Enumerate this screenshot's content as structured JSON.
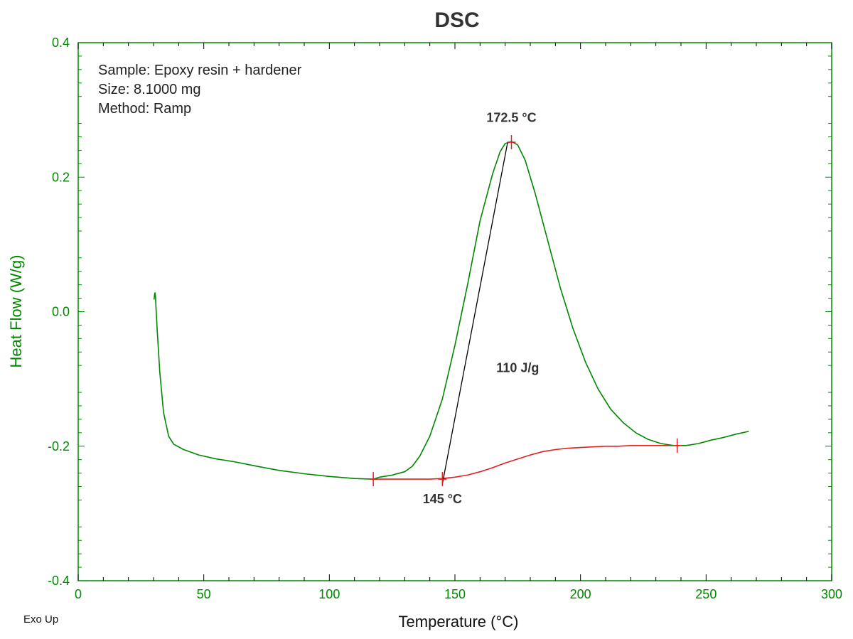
{
  "chart_data": {
    "type": "line",
    "title": "DSC",
    "xlabel": "Temperature (°C)",
    "ylabel": "Heat Flow (W/g)",
    "xlim": [
      0,
      300
    ],
    "ylim": [
      -0.4,
      0.4
    ],
    "x_ticks": [
      0,
      50,
      100,
      150,
      200,
      250,
      300
    ],
    "x_tick_labels": [
      "0",
      "50",
      "100",
      "150",
      "200",
      "250",
      "300"
    ],
    "y_ticks": [
      0.4,
      0.2,
      0.0,
      -0.2,
      -0.4
    ],
    "y_tick_labels": [
      "0.4",
      "0.2",
      "0.0",
      "-0.2",
      "-0.4"
    ],
    "grid": false,
    "corner_label": "Exo Up",
    "info_lines": [
      "Sample: Epoxy resin + hardener",
      "Size: 8.1000 mg",
      "Method: Ramp"
    ],
    "colors": {
      "curve": "#008800",
      "baseline": "#e02020",
      "tangent": "#000000",
      "axis": "#008800"
    },
    "series": [
      {
        "x": [
          30.2,
          30.4,
          30.6,
          30.8,
          31.0,
          31.5,
          32.5,
          34,
          36,
          38,
          42,
          48,
          55,
          62,
          70,
          80,
          90,
          100,
          110,
          117.5,
          120,
          125,
          130,
          133,
          136,
          140,
          145,
          150,
          155,
          160,
          165,
          168,
          170,
          172.5,
          175,
          178,
          182,
          187,
          192,
          197,
          202,
          207,
          212,
          217,
          222,
          227,
          232,
          237,
          242,
          247,
          252,
          257,
          262,
          267
        ],
        "y": [
          0.018,
          0.025,
          0.028,
          0.022,
          0.005,
          -0.03,
          -0.09,
          -0.15,
          -0.185,
          -0.197,
          -0.205,
          -0.213,
          -0.219,
          -0.223,
          -0.229,
          -0.236,
          -0.241,
          -0.245,
          -0.248,
          -0.249,
          -0.246,
          -0.243,
          -0.238,
          -0.23,
          -0.215,
          -0.185,
          -0.13,
          -0.05,
          0.04,
          0.135,
          0.205,
          0.238,
          0.25,
          0.253,
          0.248,
          0.225,
          0.175,
          0.105,
          0.035,
          -0.025,
          -0.075,
          -0.115,
          -0.145,
          -0.165,
          -0.18,
          -0.19,
          -0.196,
          -0.199,
          -0.199,
          -0.196,
          -0.191,
          -0.187,
          -0.182,
          -0.178
        ]
      }
    ],
    "baseline": {
      "x": [
        117.5,
        130,
        140,
        145,
        150,
        155,
        160,
        165,
        170,
        175,
        180,
        185,
        190,
        195,
        200,
        205,
        210,
        215,
        220,
        225,
        230,
        238.5
      ],
      "y": [
        -0.249,
        -0.249,
        -0.249,
        -0.248,
        -0.246,
        -0.243,
        -0.238,
        -0.232,
        -0.225,
        -0.219,
        -0.213,
        -0.208,
        -0.205,
        -0.203,
        -0.202,
        -0.201,
        -0.2,
        -0.2,
        -0.199,
        -0.199,
        -0.199,
        -0.199
      ]
    },
    "tangent": {
      "x": [
        145,
        171
      ],
      "y": [
        -0.256,
        0.252
      ]
    },
    "markers": [
      {
        "x": 117.5,
        "y": -0.249
      },
      {
        "x": 145,
        "y": -0.249
      },
      {
        "x": 172.5,
        "y": 0.252
      },
      {
        "x": 238.5,
        "y": -0.199
      }
    ],
    "annotations": [
      {
        "text": "172.5 °C",
        "x": 172.5,
        "y": 0.282
      },
      {
        "text": "145 °C",
        "x": 145,
        "y": -0.285
      },
      {
        "text": "110 J/g",
        "x": 175,
        "y": -0.09
      }
    ]
  }
}
